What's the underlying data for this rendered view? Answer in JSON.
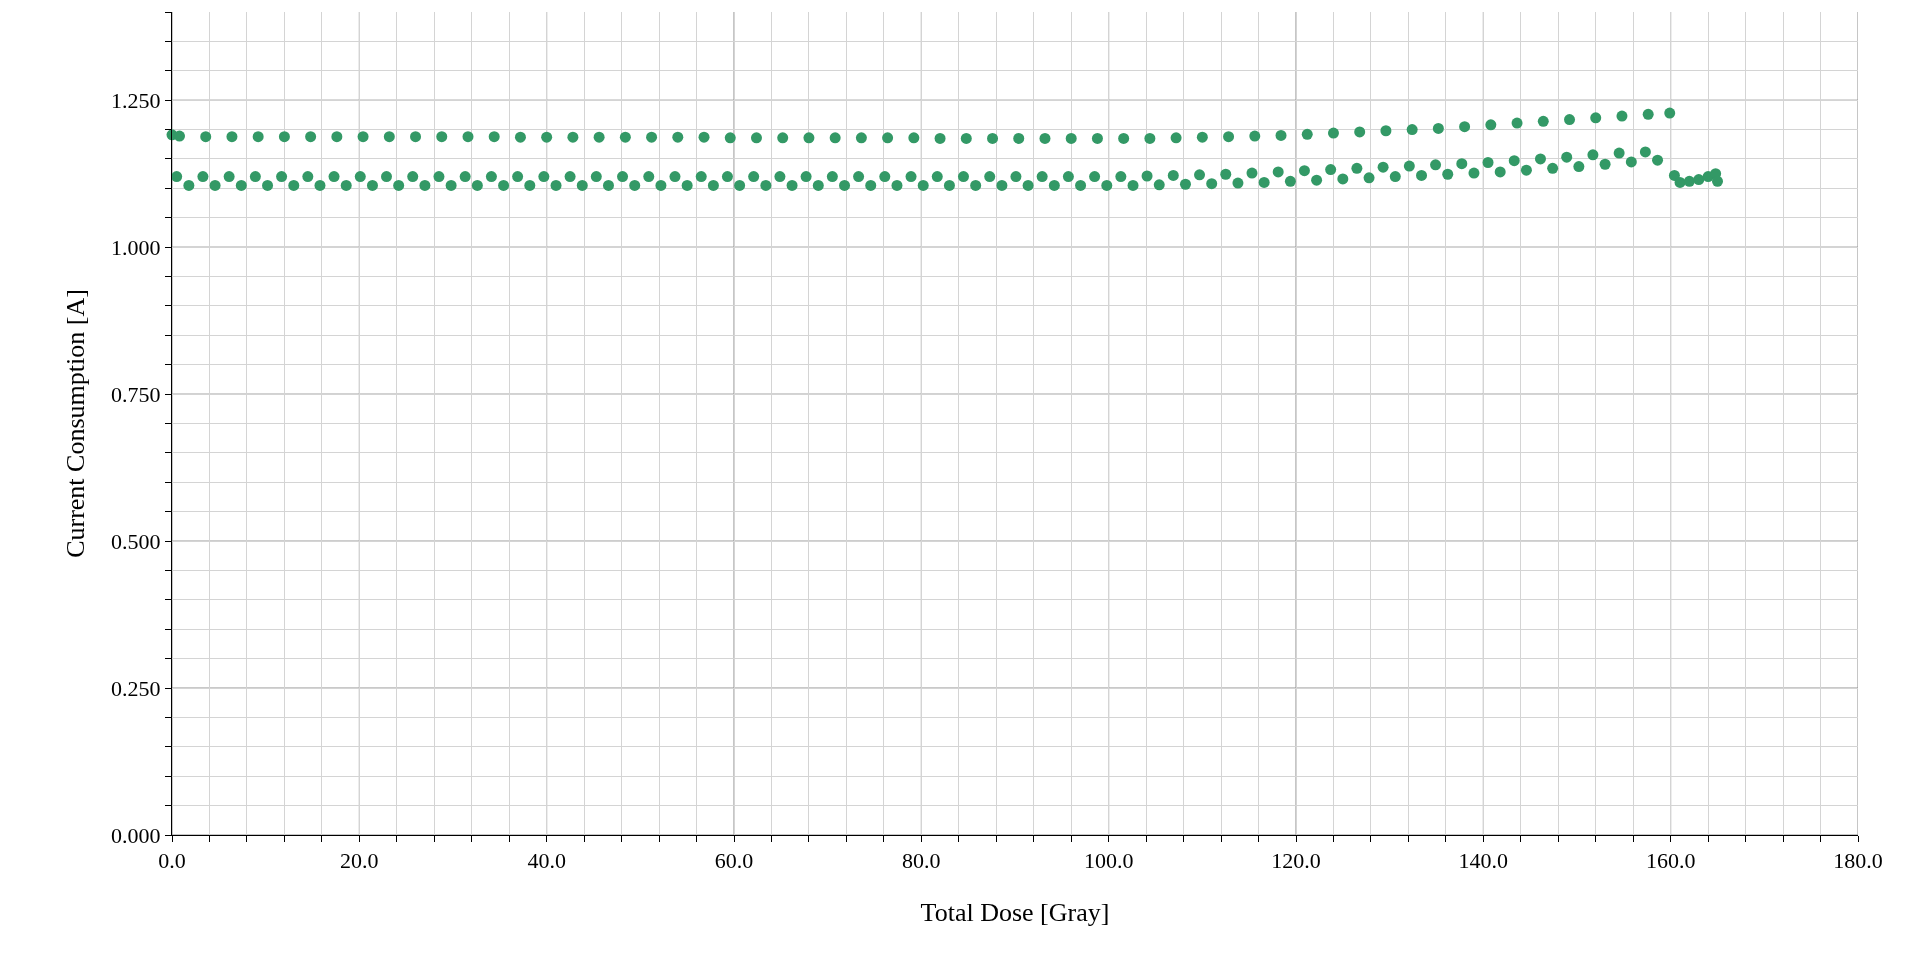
{
  "chart_data": {
    "type": "scatter",
    "xlabel": "Total Dose [Gray]",
    "ylabel": "Current Consumption [A]",
    "marker": "circle",
    "grid": true,
    "xlim": [
      0,
      180
    ],
    "ylim": [
      0,
      1.4
    ],
    "xticks": [
      {
        "value": 0,
        "label": "0.0"
      },
      {
        "value": 4,
        "label": null
      },
      {
        "value": 8,
        "label": null
      },
      {
        "value": 12,
        "label": null
      },
      {
        "value": 16,
        "label": null
      },
      {
        "value": 20,
        "label": "20.0"
      },
      {
        "value": 24,
        "label": null
      },
      {
        "value": 28,
        "label": null
      },
      {
        "value": 32,
        "label": null
      },
      {
        "value": 36,
        "label": null
      },
      {
        "value": 40,
        "label": "40.0"
      },
      {
        "value": 44,
        "label": null
      },
      {
        "value": 48,
        "label": null
      },
      {
        "value": 52,
        "label": null
      },
      {
        "value": 56,
        "label": null
      },
      {
        "value": 60,
        "label": "60.0"
      },
      {
        "value": 64,
        "label": null
      },
      {
        "value": 68,
        "label": null
      },
      {
        "value": 72,
        "label": null
      },
      {
        "value": 76,
        "label": null
      },
      {
        "value": 80,
        "label": "80.0"
      },
      {
        "value": 84,
        "label": null
      },
      {
        "value": 88,
        "label": null
      },
      {
        "value": 92,
        "label": null
      },
      {
        "value": 96,
        "label": null
      },
      {
        "value": 100,
        "label": "100.0"
      },
      {
        "value": 104,
        "label": null
      },
      {
        "value": 108,
        "label": null
      },
      {
        "value": 112,
        "label": null
      },
      {
        "value": 116,
        "label": null
      },
      {
        "value": 120,
        "label": "120.0"
      },
      {
        "value": 124,
        "label": null
      },
      {
        "value": 128,
        "label": null
      },
      {
        "value": 132,
        "label": null
      },
      {
        "value": 136,
        "label": null
      },
      {
        "value": 140,
        "label": "140.0"
      },
      {
        "value": 144,
        "label": null
      },
      {
        "value": 148,
        "label": null
      },
      {
        "value": 152,
        "label": null
      },
      {
        "value": 156,
        "label": null
      },
      {
        "value": 160,
        "label": "160.0"
      },
      {
        "value": 164,
        "label": null
      },
      {
        "value": 168,
        "label": null
      },
      {
        "value": 172,
        "label": null
      },
      {
        "value": 176,
        "label": null
      },
      {
        "value": 180,
        "label": "180.0"
      }
    ],
    "yticks": [
      {
        "value": 0,
        "label": "0.000"
      },
      {
        "value": 0.05,
        "label": null
      },
      {
        "value": 0.1,
        "label": null
      },
      {
        "value": 0.15,
        "label": null
      },
      {
        "value": 0.2,
        "label": null
      },
      {
        "value": 0.25,
        "label": "0.250"
      },
      {
        "value": 0.3,
        "label": null
      },
      {
        "value": 0.35,
        "label": null
      },
      {
        "value": 0.4,
        "label": null
      },
      {
        "value": 0.45,
        "label": null
      },
      {
        "value": 0.5,
        "label": "0.500"
      },
      {
        "value": 0.55,
        "label": null
      },
      {
        "value": 0.6,
        "label": null
      },
      {
        "value": 0.65,
        "label": null
      },
      {
        "value": 0.7,
        "label": null
      },
      {
        "value": 0.75,
        "label": "0.750"
      },
      {
        "value": 0.8,
        "label": null
      },
      {
        "value": 0.85,
        "label": null
      },
      {
        "value": 0.9,
        "label": null
      },
      {
        "value": 0.95,
        "label": null
      },
      {
        "value": 1.0,
        "label": "1.000"
      },
      {
        "value": 1.05,
        "label": null
      },
      {
        "value": 1.1,
        "label": null
      },
      {
        "value": 1.15,
        "label": null
      },
      {
        "value": 1.2,
        "label": null
      },
      {
        "value": 1.25,
        "label": "1.250"
      },
      {
        "value": 1.3,
        "label": null
      },
      {
        "value": 1.35,
        "label": null
      },
      {
        "value": 1.4,
        "label": null
      }
    ],
    "series": [
      {
        "color": "#339966",
        "x": [
          0,
          0.8,
          3.6,
          6.4,
          9.2,
          12.0,
          14.8,
          17.6,
          20.4,
          23.2,
          26.0,
          28.8,
          31.6,
          34.4,
          37.2,
          40.0,
          42.8,
          45.6,
          48.4,
          51.2,
          54.0,
          56.8,
          59.6,
          62.4,
          65.2,
          68.0,
          70.8,
          73.6,
          76.4,
          79.2,
          82.0,
          84.8,
          87.6,
          90.4,
          93.2,
          96.0,
          98.8,
          101.6,
          104.4,
          107.2,
          110.0,
          112.8,
          115.6,
          118.4,
          121.2,
          124.0,
          126.8,
          129.6,
          132.4,
          135.2,
          138.0,
          140.8,
          143.6,
          146.4,
          149.2,
          152.0,
          154.8,
          157.6,
          159.9
        ],
        "values": [
          1.191,
          1.189,
          1.188,
          1.188,
          1.188,
          1.188,
          1.188,
          1.188,
          1.188,
          1.188,
          1.188,
          1.188,
          1.188,
          1.188,
          1.187,
          1.187,
          1.187,
          1.187,
          1.187,
          1.187,
          1.187,
          1.187,
          1.186,
          1.186,
          1.186,
          1.186,
          1.186,
          1.186,
          1.186,
          1.186,
          1.185,
          1.185,
          1.185,
          1.185,
          1.185,
          1.185,
          1.185,
          1.185,
          1.185,
          1.186,
          1.187,
          1.188,
          1.189,
          1.19,
          1.192,
          1.194,
          1.196,
          1.198,
          1.2,
          1.202,
          1.205,
          1.208,
          1.211,
          1.214,
          1.217,
          1.22,
          1.223,
          1.226,
          1.228
        ]
      },
      {
        "color": "#339966",
        "x": [
          0.5,
          3.3,
          6.1,
          8.9,
          11.7,
          14.5,
          17.3,
          20.1,
          22.9,
          25.7,
          28.5,
          31.3,
          34.1,
          36.9,
          39.7,
          42.5,
          45.3,
          48.1,
          50.9,
          53.7,
          56.5,
          59.3,
          62.1,
          64.9,
          67.7,
          70.5,
          73.3,
          76.1,
          78.9,
          81.7,
          84.5,
          87.3,
          90.1,
          92.9,
          95.7,
          98.5,
          101.3,
          104.1,
          106.9,
          109.7,
          112.5,
          115.3,
          118.1,
          120.9,
          123.7,
          126.5,
          129.3,
          132.1,
          134.9,
          137.7,
          140.5,
          143.3,
          146.1,
          148.9,
          151.7,
          154.5,
          157.3
        ],
        "values": [
          1.12,
          1.12,
          1.12,
          1.12,
          1.12,
          1.12,
          1.12,
          1.12,
          1.12,
          1.12,
          1.12,
          1.12,
          1.12,
          1.12,
          1.12,
          1.12,
          1.12,
          1.12,
          1.12,
          1.12,
          1.12,
          1.12,
          1.12,
          1.12,
          1.12,
          1.12,
          1.12,
          1.12,
          1.12,
          1.12,
          1.12,
          1.12,
          1.12,
          1.12,
          1.12,
          1.12,
          1.12,
          1.121,
          1.122,
          1.123,
          1.124,
          1.126,
          1.128,
          1.13,
          1.132,
          1.134,
          1.136,
          1.138,
          1.14,
          1.142,
          1.144,
          1.147,
          1.15,
          1.153,
          1.157,
          1.16,
          1.162
        ]
      },
      {
        "color": "#339966",
        "x": [
          1.8,
          4.6,
          7.4,
          10.2,
          13.0,
          15.8,
          18.6,
          21.4,
          24.2,
          27.0,
          29.8,
          32.6,
          35.4,
          38.2,
          41.0,
          43.8,
          46.6,
          49.4,
          52.2,
          55.0,
          57.8,
          60.6,
          63.4,
          66.2,
          69.0,
          71.8,
          74.6,
          77.4,
          80.2,
          83.0,
          85.8,
          88.6,
          91.4,
          94.2,
          97.0,
          99.8,
          102.6,
          105.4,
          108.2,
          111.0,
          113.8,
          116.6,
          119.4,
          122.2,
          125.0,
          127.8,
          130.6,
          133.4,
          136.2,
          139.0,
          141.8,
          144.6,
          147.4,
          150.2,
          153.0,
          155.8,
          158.6
        ],
        "values": [
          1.105,
          1.105,
          1.105,
          1.105,
          1.105,
          1.105,
          1.105,
          1.105,
          1.105,
          1.105,
          1.105,
          1.105,
          1.105,
          1.105,
          1.105,
          1.105,
          1.105,
          1.105,
          1.105,
          1.105,
          1.105,
          1.105,
          1.105,
          1.105,
          1.105,
          1.105,
          1.105,
          1.105,
          1.105,
          1.105,
          1.105,
          1.105,
          1.105,
          1.105,
          1.105,
          1.105,
          1.105,
          1.106,
          1.107,
          1.108,
          1.109,
          1.11,
          1.112,
          1.114,
          1.116,
          1.118,
          1.12,
          1.122,
          1.124,
          1.126,
          1.128,
          1.131,
          1.134,
          1.137,
          1.141,
          1.145,
          1.148
        ]
      },
      {
        "color": "#339966",
        "x": [
          160.4,
          161.0,
          162.0,
          163.0,
          164.0,
          164.8,
          165.0
        ],
        "values": [
          1.122,
          1.11,
          1.112,
          1.115,
          1.12,
          1.125,
          1.112
        ]
      }
    ]
  }
}
